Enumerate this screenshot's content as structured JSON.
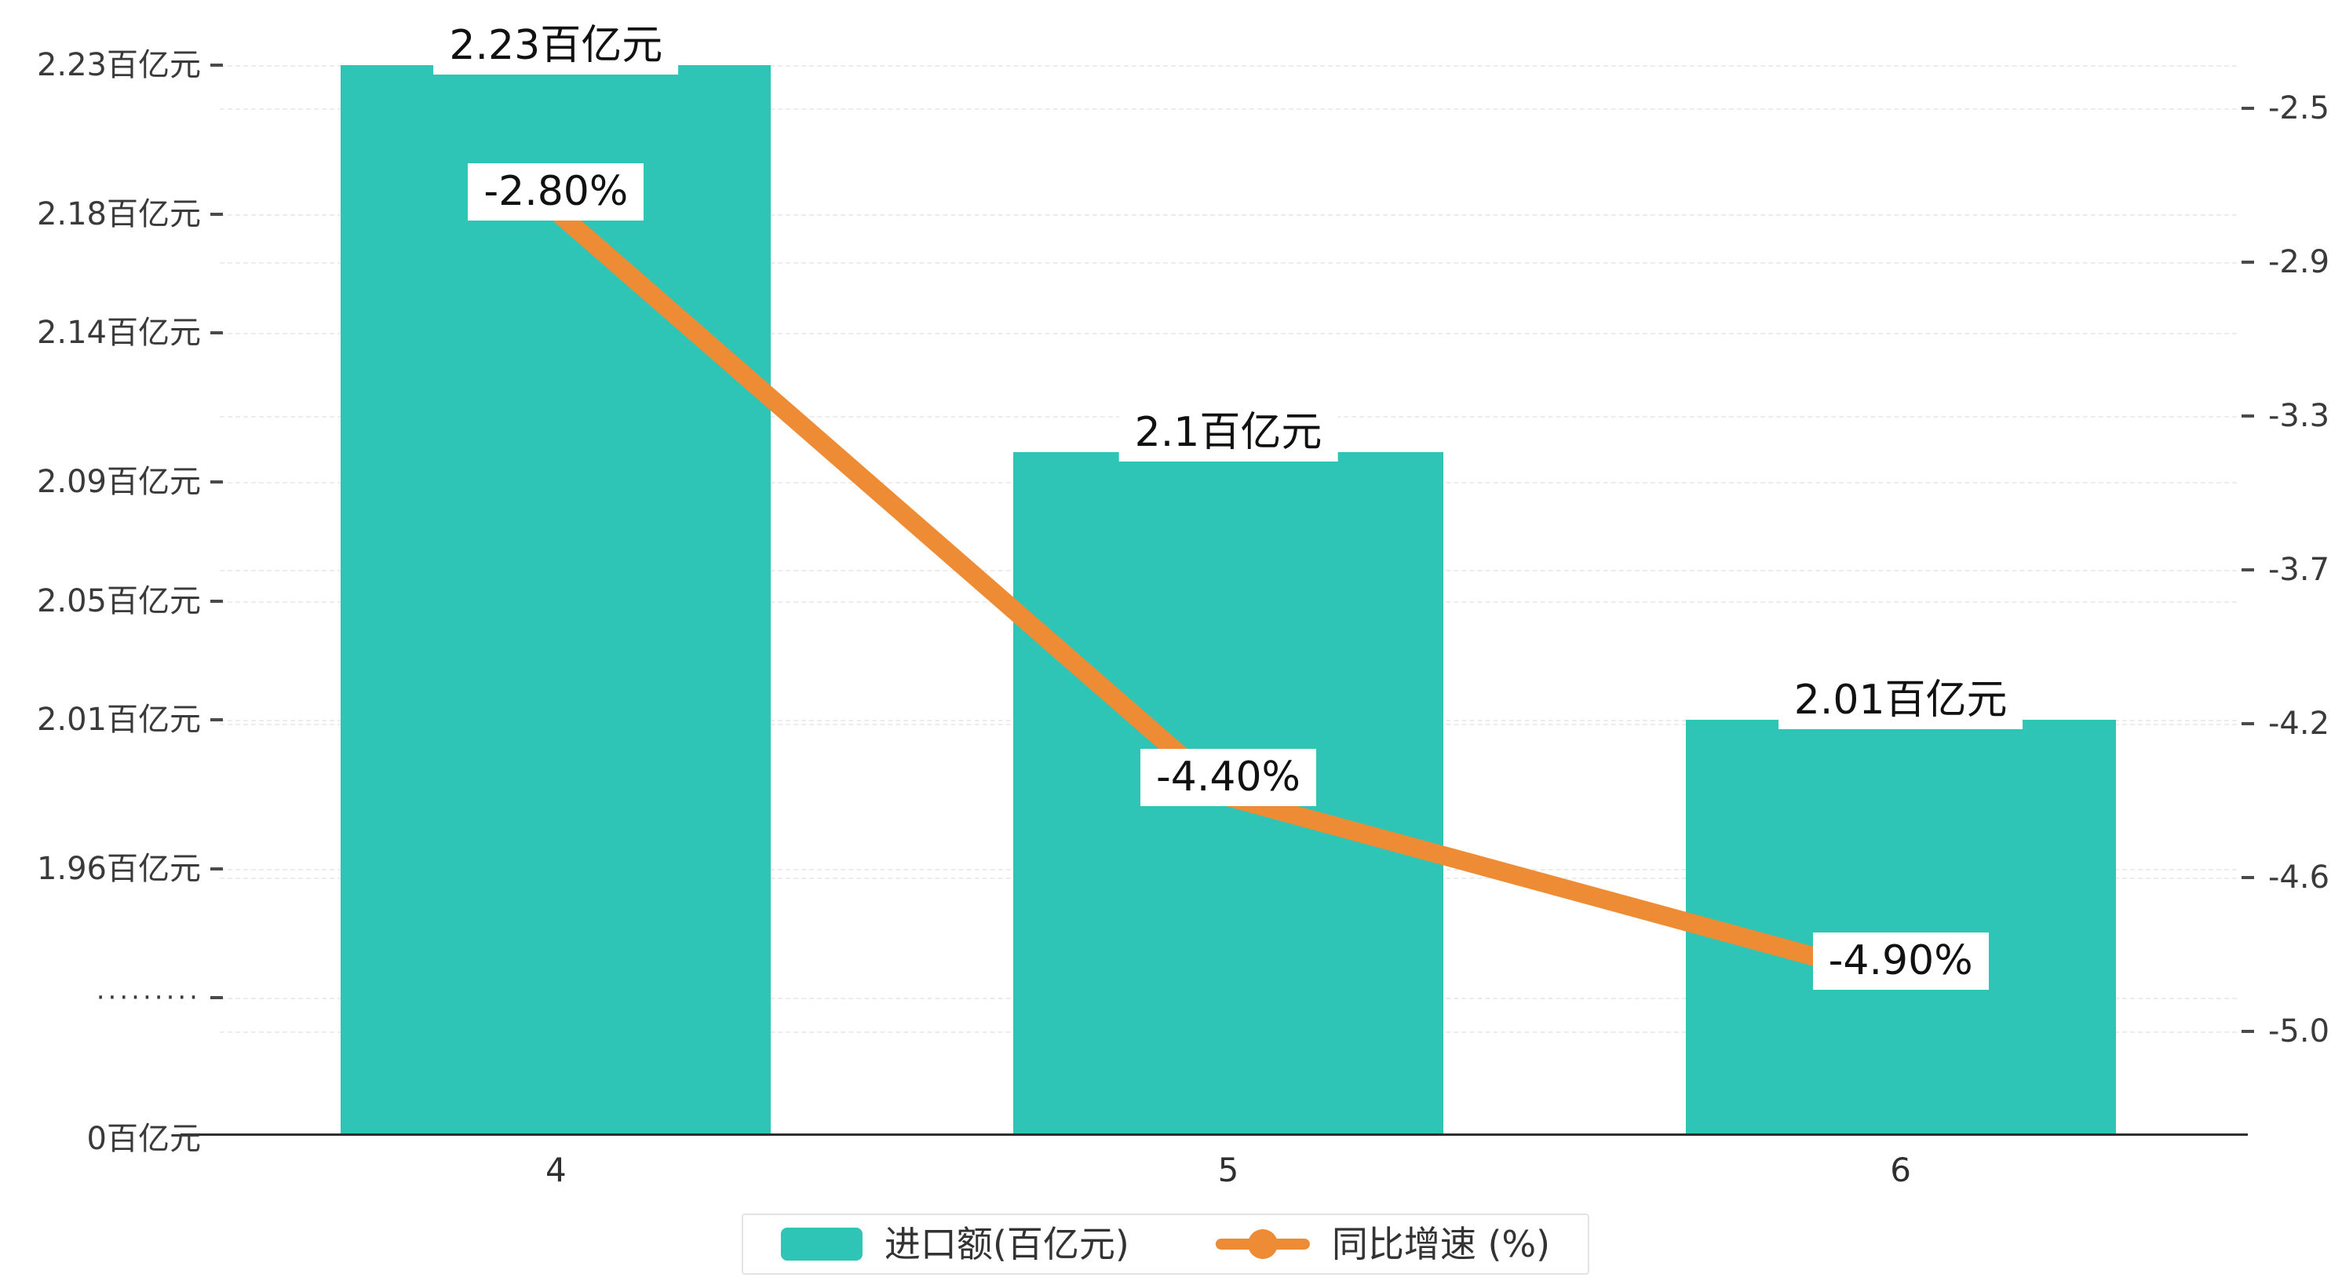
{
  "chart_data": {
    "type": "bar+line",
    "title": "",
    "categories": [
      "4",
      "5",
      "6"
    ],
    "series": [
      {
        "name": "进口额(百亿元)",
        "type": "bar",
        "axis": "left",
        "color": "#2ec4b6",
        "values": [
          2.23,
          2.1,
          2.01
        ],
        "labels": [
          "2.23百亿元",
          "2.1百亿元",
          "2.01百亿元"
        ]
      },
      {
        "name": "同比增速 (%)",
        "type": "line",
        "axis": "right",
        "color": "#ee8c35",
        "values": [
          -2.8,
          -4.4,
          -4.9
        ],
        "labels": [
          "-2.80%",
          "-4.40%",
          "-4.90%"
        ]
      }
    ],
    "left_axis": {
      "ticks": [
        {
          "v": 2.23,
          "label": "2.23百亿元"
        },
        {
          "v": 2.18,
          "label": "2.18百亿元"
        },
        {
          "v": 2.14,
          "label": "2.14百亿元"
        },
        {
          "v": 2.09,
          "label": "2.09百亿元"
        },
        {
          "v": 2.05,
          "label": "2.05百亿元"
        },
        {
          "v": 2.01,
          "label": "2.01百亿元"
        },
        {
          "v": 1.96,
          "label": "1.96百亿元"
        }
      ],
      "break_label": "·········",
      "zero_label": "0百亿元",
      "range_note": "axis broken between 0 and 1.96"
    },
    "right_axis": {
      "ticks": [
        {
          "v": -2.52,
          "label": "-2.52"
        },
        {
          "v": -2.94,
          "label": "-2.94"
        },
        {
          "v": -3.36,
          "label": "-3.36"
        },
        {
          "v": -3.78,
          "label": "-3.78"
        },
        {
          "v": -4.2,
          "label": "-4.20"
        },
        {
          "v": -4.62,
          "label": "-4.62"
        },
        {
          "v": -5.04,
          "label": "-5.04"
        }
      ],
      "range": [
        -5.04,
        -2.52
      ]
    },
    "legend": {
      "position": "bottom",
      "items": [
        {
          "label": "进口额(百亿元)",
          "marker": "bar"
        },
        {
          "label": "同比增速 (%)",
          "marker": "line"
        }
      ]
    },
    "grid": true
  }
}
